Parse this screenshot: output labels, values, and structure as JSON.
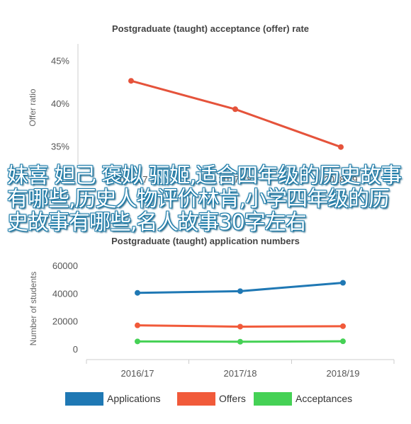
{
  "overlay": {
    "text": "妹喜 妲己 褒姒 骊姬,适合四年级的历史故事有哪些,历史人物评价林肯,小学四年级的历史故事有哪些,名人故事30字左右"
  },
  "chart_data": [
    {
      "type": "line",
      "title": "Postgraduate (taught) acceptance (offer) rate",
      "ylabel": "Offer ratio",
      "xlabel": "",
      "categories": [
        "2016/17",
        "2017/18",
        "2018/19"
      ],
      "series": [
        {
          "values": [
            42.7,
            39.4,
            35.0
          ],
          "color": "#e5533b"
        }
      ],
      "ylim": [
        33,
        47
      ],
      "yticks": [
        35,
        40,
        45
      ],
      "ytick_labels": [
        "35%",
        "40%",
        "45%"
      ],
      "grid": false
    },
    {
      "type": "line",
      "title": "Postgraduate (taught) application numbers",
      "ylabel": "Number of students",
      "xlabel": "",
      "categories": [
        "2016/17",
        "2017/18",
        "2018/19"
      ],
      "series": [
        {
          "name": "Applications",
          "values": [
            40800,
            42000,
            48000
          ],
          "color": "#1f78b4"
        },
        {
          "name": "Offers",
          "values": [
            17500,
            16600,
            16900
          ],
          "color": "#f15a3a"
        },
        {
          "name": "Acceptances",
          "values": [
            6000,
            5800,
            6100
          ],
          "color": "#45d155"
        }
      ],
      "ylim": [
        -7000,
        67000
      ],
      "yticks": [
        0,
        20000,
        40000,
        60000
      ],
      "ytick_labels": [
        "0",
        "20000",
        "40000",
        "60000"
      ],
      "grid": false,
      "legend": "bottom"
    }
  ]
}
